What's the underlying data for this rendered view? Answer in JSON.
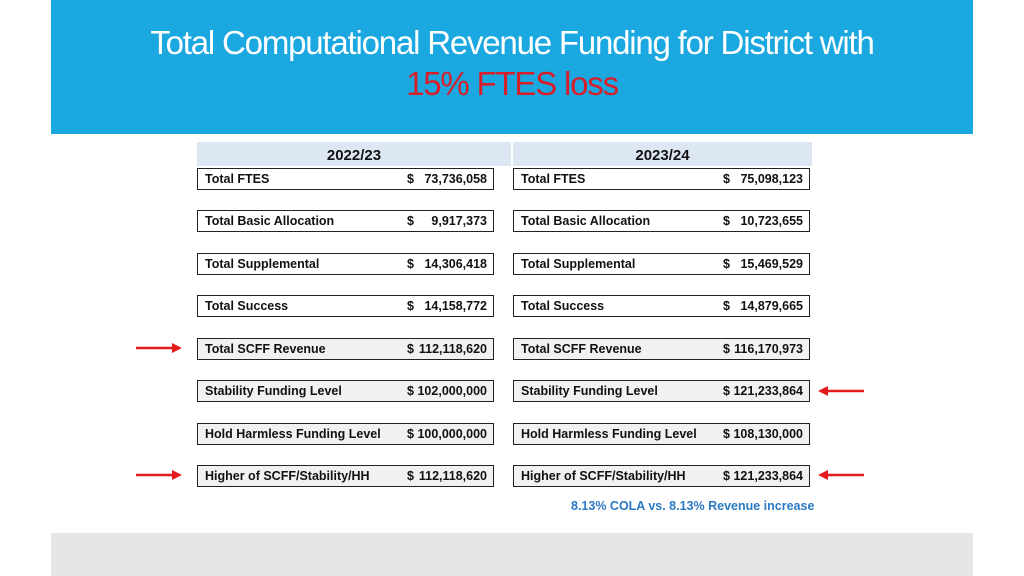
{
  "title": {
    "line1": "Total Computational Revenue Funding for District with",
    "line2": "15% FTES loss"
  },
  "columns": [
    {
      "year": "2022/23",
      "rows": [
        {
          "label": "Total FTES",
          "dollar": "$",
          "value": "73,736,058"
        },
        {
          "label": "Total Basic Allocation",
          "dollar": "$",
          "value": "9,917,373"
        },
        {
          "label": "Total Supplemental",
          "dollar": "$",
          "value": "14,306,418"
        },
        {
          "label": "Total Success",
          "dollar": "$",
          "value": "14,158,772"
        },
        {
          "label": "Total SCFF Revenue",
          "dollar": "$",
          "value": "112,118,620"
        },
        {
          "label": "Stability Funding Level",
          "dollar": "$",
          "value": "102,000,000"
        },
        {
          "label": "Hold Harmless Funding Level",
          "dollar": "$",
          "value": "100,000,000"
        },
        {
          "label": "Higher of SCFF/Stability/HH",
          "dollar": "$",
          "value": "112,118,620"
        }
      ]
    },
    {
      "year": "2023/24",
      "rows": [
        {
          "label": "Total FTES",
          "dollar": "$",
          "value": "75,098,123"
        },
        {
          "label": "Total Basic Allocation",
          "dollar": "$",
          "value": "10,723,655"
        },
        {
          "label": "Total Supplemental",
          "dollar": "$",
          "value": "15,469,529"
        },
        {
          "label": "Total Success",
          "dollar": "$",
          "value": "14,879,665"
        },
        {
          "label": "Total SCFF Revenue",
          "dollar": "$",
          "value": "116,170,973"
        },
        {
          "label": "Stability Funding Level",
          "dollar": "$",
          "value": "121,233,864"
        },
        {
          "label": "Hold Harmless Funding Level",
          "dollar": "$",
          "value": "108,130,000"
        },
        {
          "label": "Higher of SCFF/Stability/HH",
          "dollar": "$",
          "value": "121,233,864"
        }
      ]
    }
  ],
  "note": "8.13% COLA vs. 8.13% Revenue increase",
  "colors": {
    "header_bg": "#1ba8e0",
    "title_highlight": "#d71f2a",
    "arrow": "#e21b1b",
    "note": "#2a79c2"
  }
}
